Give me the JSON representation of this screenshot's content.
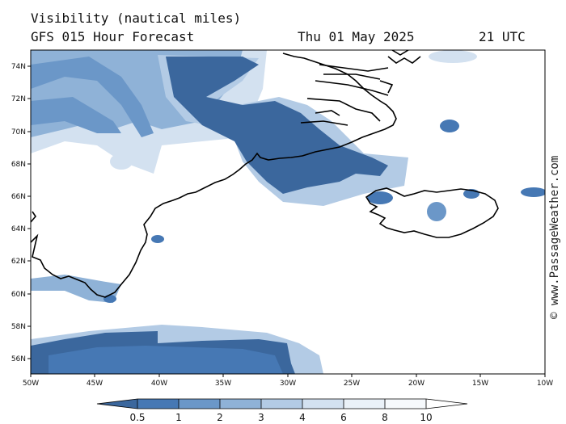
{
  "header": {
    "title": "Visibility (nautical miles)",
    "subtitle": "GFS 015 Hour Forecast",
    "date": "Thu 01 May 2025",
    "time": "21 UTC"
  },
  "copyright": "© www.PassageWeather.com",
  "map": {
    "lon_range": [
      -50,
      -10
    ],
    "lat_range": [
      55,
      75
    ],
    "lat_ticks": [
      "56N",
      "58N",
      "60N",
      "62N",
      "64N",
      "66N",
      "68N",
      "70N",
      "72N",
      "74N"
    ],
    "lon_ticks": [
      "50W",
      "45W",
      "40W",
      "35W",
      "30W",
      "25W",
      "20W",
      "15W",
      "10W"
    ]
  },
  "colorbar": {
    "labels": [
      "0.5",
      "1",
      "2",
      "3",
      "4",
      "6",
      "8",
      "10"
    ],
    "colors": [
      "#3b679d",
      "#4678b4",
      "#6b97c8",
      "#8fb2d7",
      "#b3cbe5",
      "#d3e1f0",
      "#eaf1f8",
      "#f6f9fc",
      "#ffffff"
    ]
  }
}
